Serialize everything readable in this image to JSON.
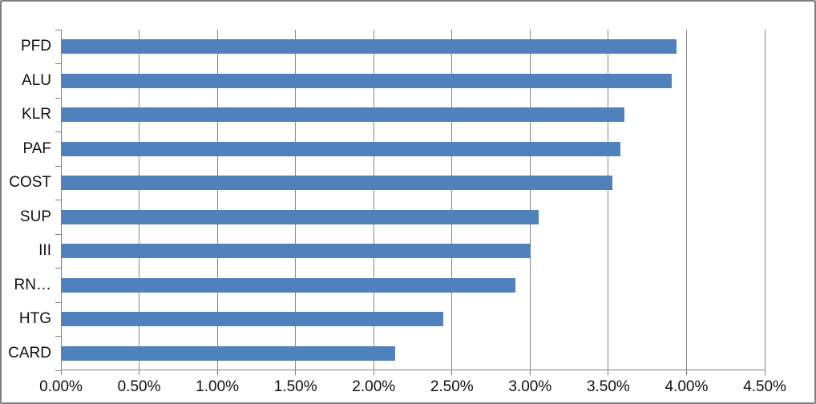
{
  "chart_data": {
    "type": "bar",
    "orientation": "horizontal",
    "title": "",
    "xlabel": "",
    "ylabel": "",
    "categories": [
      "PFD",
      "ALU",
      "KLR",
      "PAF",
      "COST",
      "SUP",
      "III",
      "RN…",
      "HTG",
      "CARD"
    ],
    "values": [
      3.93,
      3.9,
      3.6,
      3.57,
      3.52,
      3.05,
      3.0,
      2.9,
      2.44,
      2.13
    ],
    "values_unit": "%",
    "series": [
      {
        "name": "",
        "values": [
          3.93,
          3.9,
          3.6,
          3.57,
          3.52,
          3.05,
          3.0,
          2.9,
          2.44,
          2.13
        ]
      }
    ],
    "x_tick_labels": [
      "0.00%",
      "0.50%",
      "1.00%",
      "1.50%",
      "2.00%",
      "2.50%",
      "3.00%",
      "3.50%",
      "4.00%",
      "4.50%"
    ],
    "x_tick_values": [
      0,
      0.5,
      1,
      1.5,
      2,
      2.5,
      3,
      3.5,
      4,
      4.5
    ],
    "xlim": [
      0,
      4.5
    ],
    "grid": true,
    "legend": false,
    "colors": {
      "bar": "#4F81BD",
      "gridline": "#898989",
      "axis": "#808080",
      "frame_border": "#808080",
      "text": "#111111",
      "background": "#FFFFFF"
    }
  }
}
